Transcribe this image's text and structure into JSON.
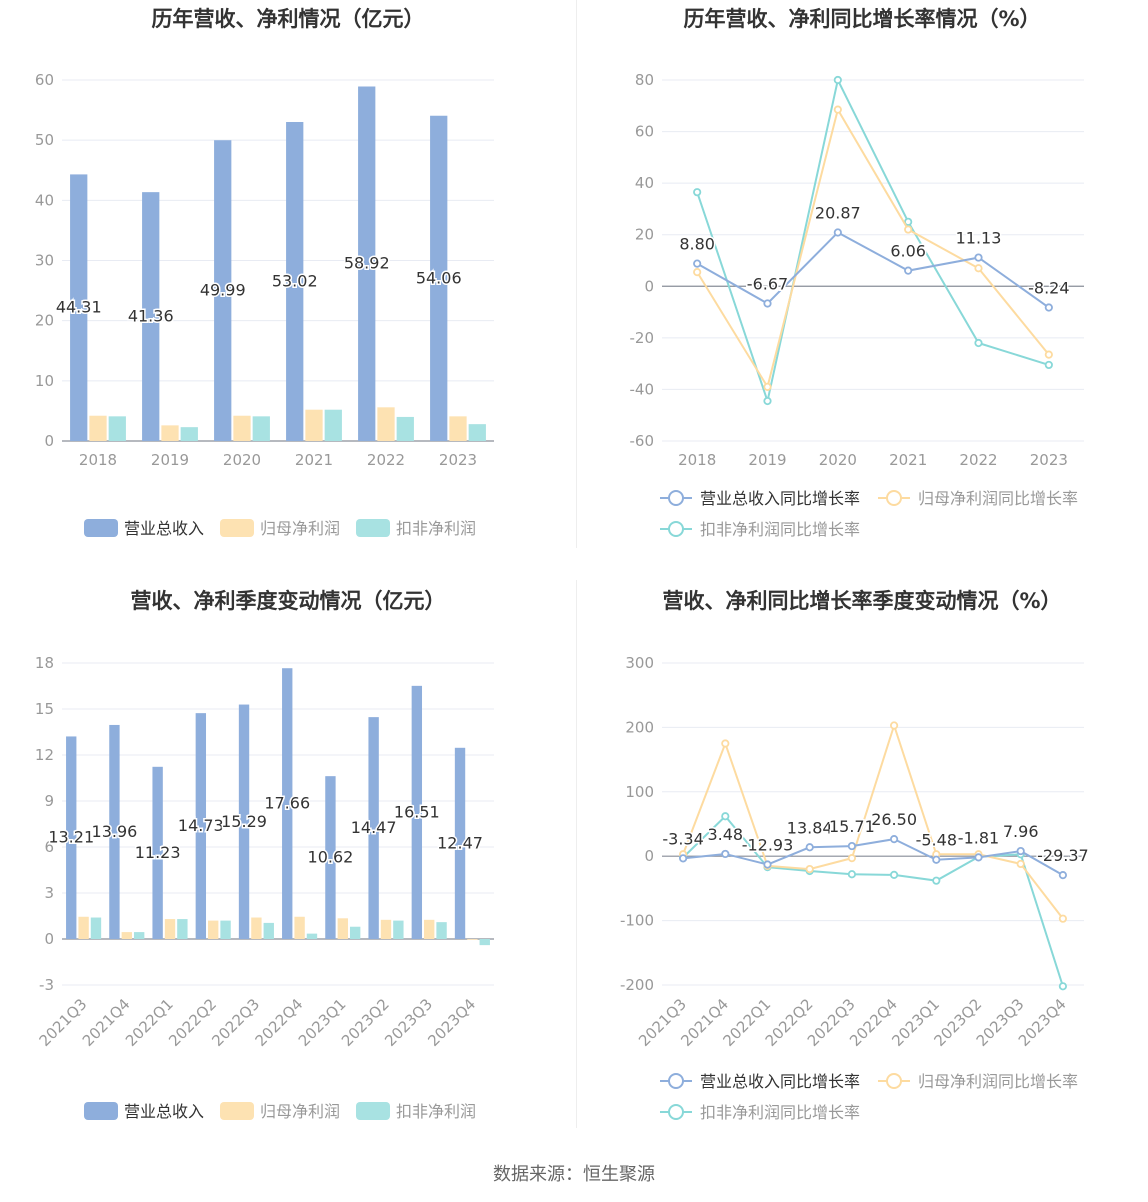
{
  "colors": {
    "revenue": "#8eaedc",
    "net_profit": "#fde2b2",
    "deducted_profit": "#a8e2e2",
    "revenue_line": "#8eaedc",
    "net_line": "#fddba0",
    "deducted_line": "#88d8d8",
    "grid": "#e8ebf3",
    "axis_text": "#999999",
    "title": "#333333"
  },
  "footer": {
    "source": "数据来源：恒生聚源"
  },
  "chart_data": [
    {
      "type": "bar",
      "title": "历年营收、净利情况（亿元）",
      "categories": [
        "2018",
        "2019",
        "2020",
        "2021",
        "2022",
        "2023"
      ],
      "ylim": [
        0,
        60
      ],
      "yticks": [
        0,
        10,
        20,
        30,
        40,
        50,
        60
      ],
      "series": [
        {
          "name": "营业总收入",
          "values": [
            44.31,
            41.36,
            49.99,
            53.02,
            58.92,
            54.06
          ],
          "labels": [
            "44.31",
            "41.36",
            "49.99",
            "53.02",
            "58.92",
            "54.06"
          ]
        },
        {
          "name": "归母净利润",
          "values": [
            4.2,
            2.6,
            4.2,
            5.2,
            5.6,
            4.1
          ]
        },
        {
          "name": "扣非净利润",
          "values": [
            4.1,
            2.3,
            4.1,
            5.2,
            4.0,
            2.8
          ]
        }
      ],
      "legend": "bottom"
    },
    {
      "type": "line",
      "title": "历年营收、净利同比增长率情况（%）",
      "categories": [
        "2018",
        "2019",
        "2020",
        "2021",
        "2022",
        "2023"
      ],
      "ylim": [
        -60,
        80
      ],
      "yticks": [
        -60,
        -40,
        -20,
        0,
        20,
        40,
        60,
        80
      ],
      "series": [
        {
          "name": "营业总收入同比增长率",
          "values": [
            8.8,
            -6.67,
            20.87,
            6.06,
            11.13,
            -8.24
          ],
          "labels": [
            "8.80",
            "-6.67",
            "20.87",
            "6.06",
            "11.13",
            "-8.24"
          ]
        },
        {
          "name": "归母净利润同比增长率",
          "values": [
            5.5,
            -39.0,
            68.5,
            22.0,
            7.0,
            -26.5
          ]
        },
        {
          "name": "扣非净利润同比增长率",
          "values": [
            36.5,
            -44.5,
            80.0,
            25.0,
            -22.0,
            -30.5
          ]
        }
      ],
      "legend": "bottom"
    },
    {
      "type": "bar",
      "title": "营收、净利季度变动情况（亿元）",
      "categories": [
        "2021Q3",
        "2021Q4",
        "2022Q1",
        "2022Q2",
        "2022Q3",
        "2022Q4",
        "2023Q1",
        "2023Q2",
        "2023Q3",
        "2023Q4"
      ],
      "ylim": [
        -3,
        18
      ],
      "yticks": [
        -3,
        0,
        3,
        6,
        9,
        12,
        15,
        18
      ],
      "series": [
        {
          "name": "营业总收入",
          "values": [
            13.21,
            13.96,
            11.23,
            14.73,
            15.29,
            17.66,
            10.62,
            14.47,
            16.51,
            12.47
          ],
          "labels": [
            "13.21",
            "13.96",
            "11.23",
            "14.73",
            "15.29",
            "17.66",
            "10.62",
            "14.47",
            "16.51",
            "12.47"
          ]
        },
        {
          "name": "归母净利润",
          "values": [
            1.45,
            0.45,
            1.3,
            1.2,
            1.4,
            1.45,
            1.35,
            1.25,
            1.25,
            -0.05
          ]
        },
        {
          "name": "扣非净利润",
          "values": [
            1.4,
            0.45,
            1.3,
            1.2,
            1.05,
            0.35,
            0.8,
            1.2,
            1.1,
            -0.4
          ]
        }
      ],
      "legend": "bottom"
    },
    {
      "type": "line",
      "title": "营收、净利同比增长率季度变动情况（%）",
      "categories": [
        "2021Q3",
        "2021Q4",
        "2022Q1",
        "2022Q2",
        "2022Q3",
        "2022Q4",
        "2023Q1",
        "2023Q2",
        "2023Q3",
        "2023Q4"
      ],
      "ylim": [
        -200,
        300
      ],
      "yticks": [
        -200,
        -100,
        0,
        100,
        200,
        300
      ],
      "series": [
        {
          "name": "营业总收入同比增长率",
          "values": [
            -3.34,
            3.48,
            -12.93,
            13.84,
            15.71,
            26.5,
            -5.48,
            -1.81,
            7.96,
            -29.37
          ],
          "labels": [
            "-3.34",
            "3.48",
            "-12.93",
            "13.84",
            "15.71",
            "26.50",
            "-5.48",
            "-1.81",
            "7.96",
            "-29.37"
          ]
        },
        {
          "name": "归母净利润同比增长率",
          "values": [
            3,
            175,
            -15,
            -20,
            -3,
            203,
            3,
            3,
            -12,
            -97
          ]
        },
        {
          "name": "扣非净利润同比增长率",
          "values": [
            -2,
            62,
            -17,
            -23,
            -28,
            -29,
            -38,
            -1,
            3,
            -202
          ]
        }
      ],
      "legend": "bottom"
    }
  ]
}
